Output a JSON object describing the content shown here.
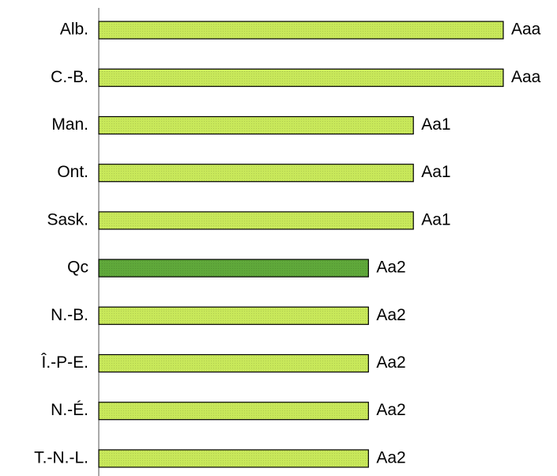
{
  "chart_data": {
    "type": "bar",
    "orientation": "horizontal",
    "categories": [
      "Alb.",
      "C.-B.",
      "Man.",
      "Ont.",
      "Sask.",
      "Qc",
      "N.-B.",
      "Î.-P-E.",
      "N.-É.",
      "T.-N.-L."
    ],
    "values": [
      9,
      9,
      7,
      7,
      7,
      6,
      6,
      6,
      6,
      6
    ],
    "value_labels": [
      "Aaa",
      "Aaa",
      "Aa1",
      "Aa1",
      "Aa1",
      "Aa2",
      "Aa2",
      "Aa2",
      "Aa2",
      "Aa2"
    ],
    "colors": [
      "#c8e85a",
      "#c8e85a",
      "#c8e85a",
      "#c8e85a",
      "#c8e85a",
      "#5fa83a",
      "#c8e85a",
      "#c8e85a",
      "#c8e85a",
      "#c8e85a"
    ],
    "xlim": [
      0,
      9
    ]
  }
}
